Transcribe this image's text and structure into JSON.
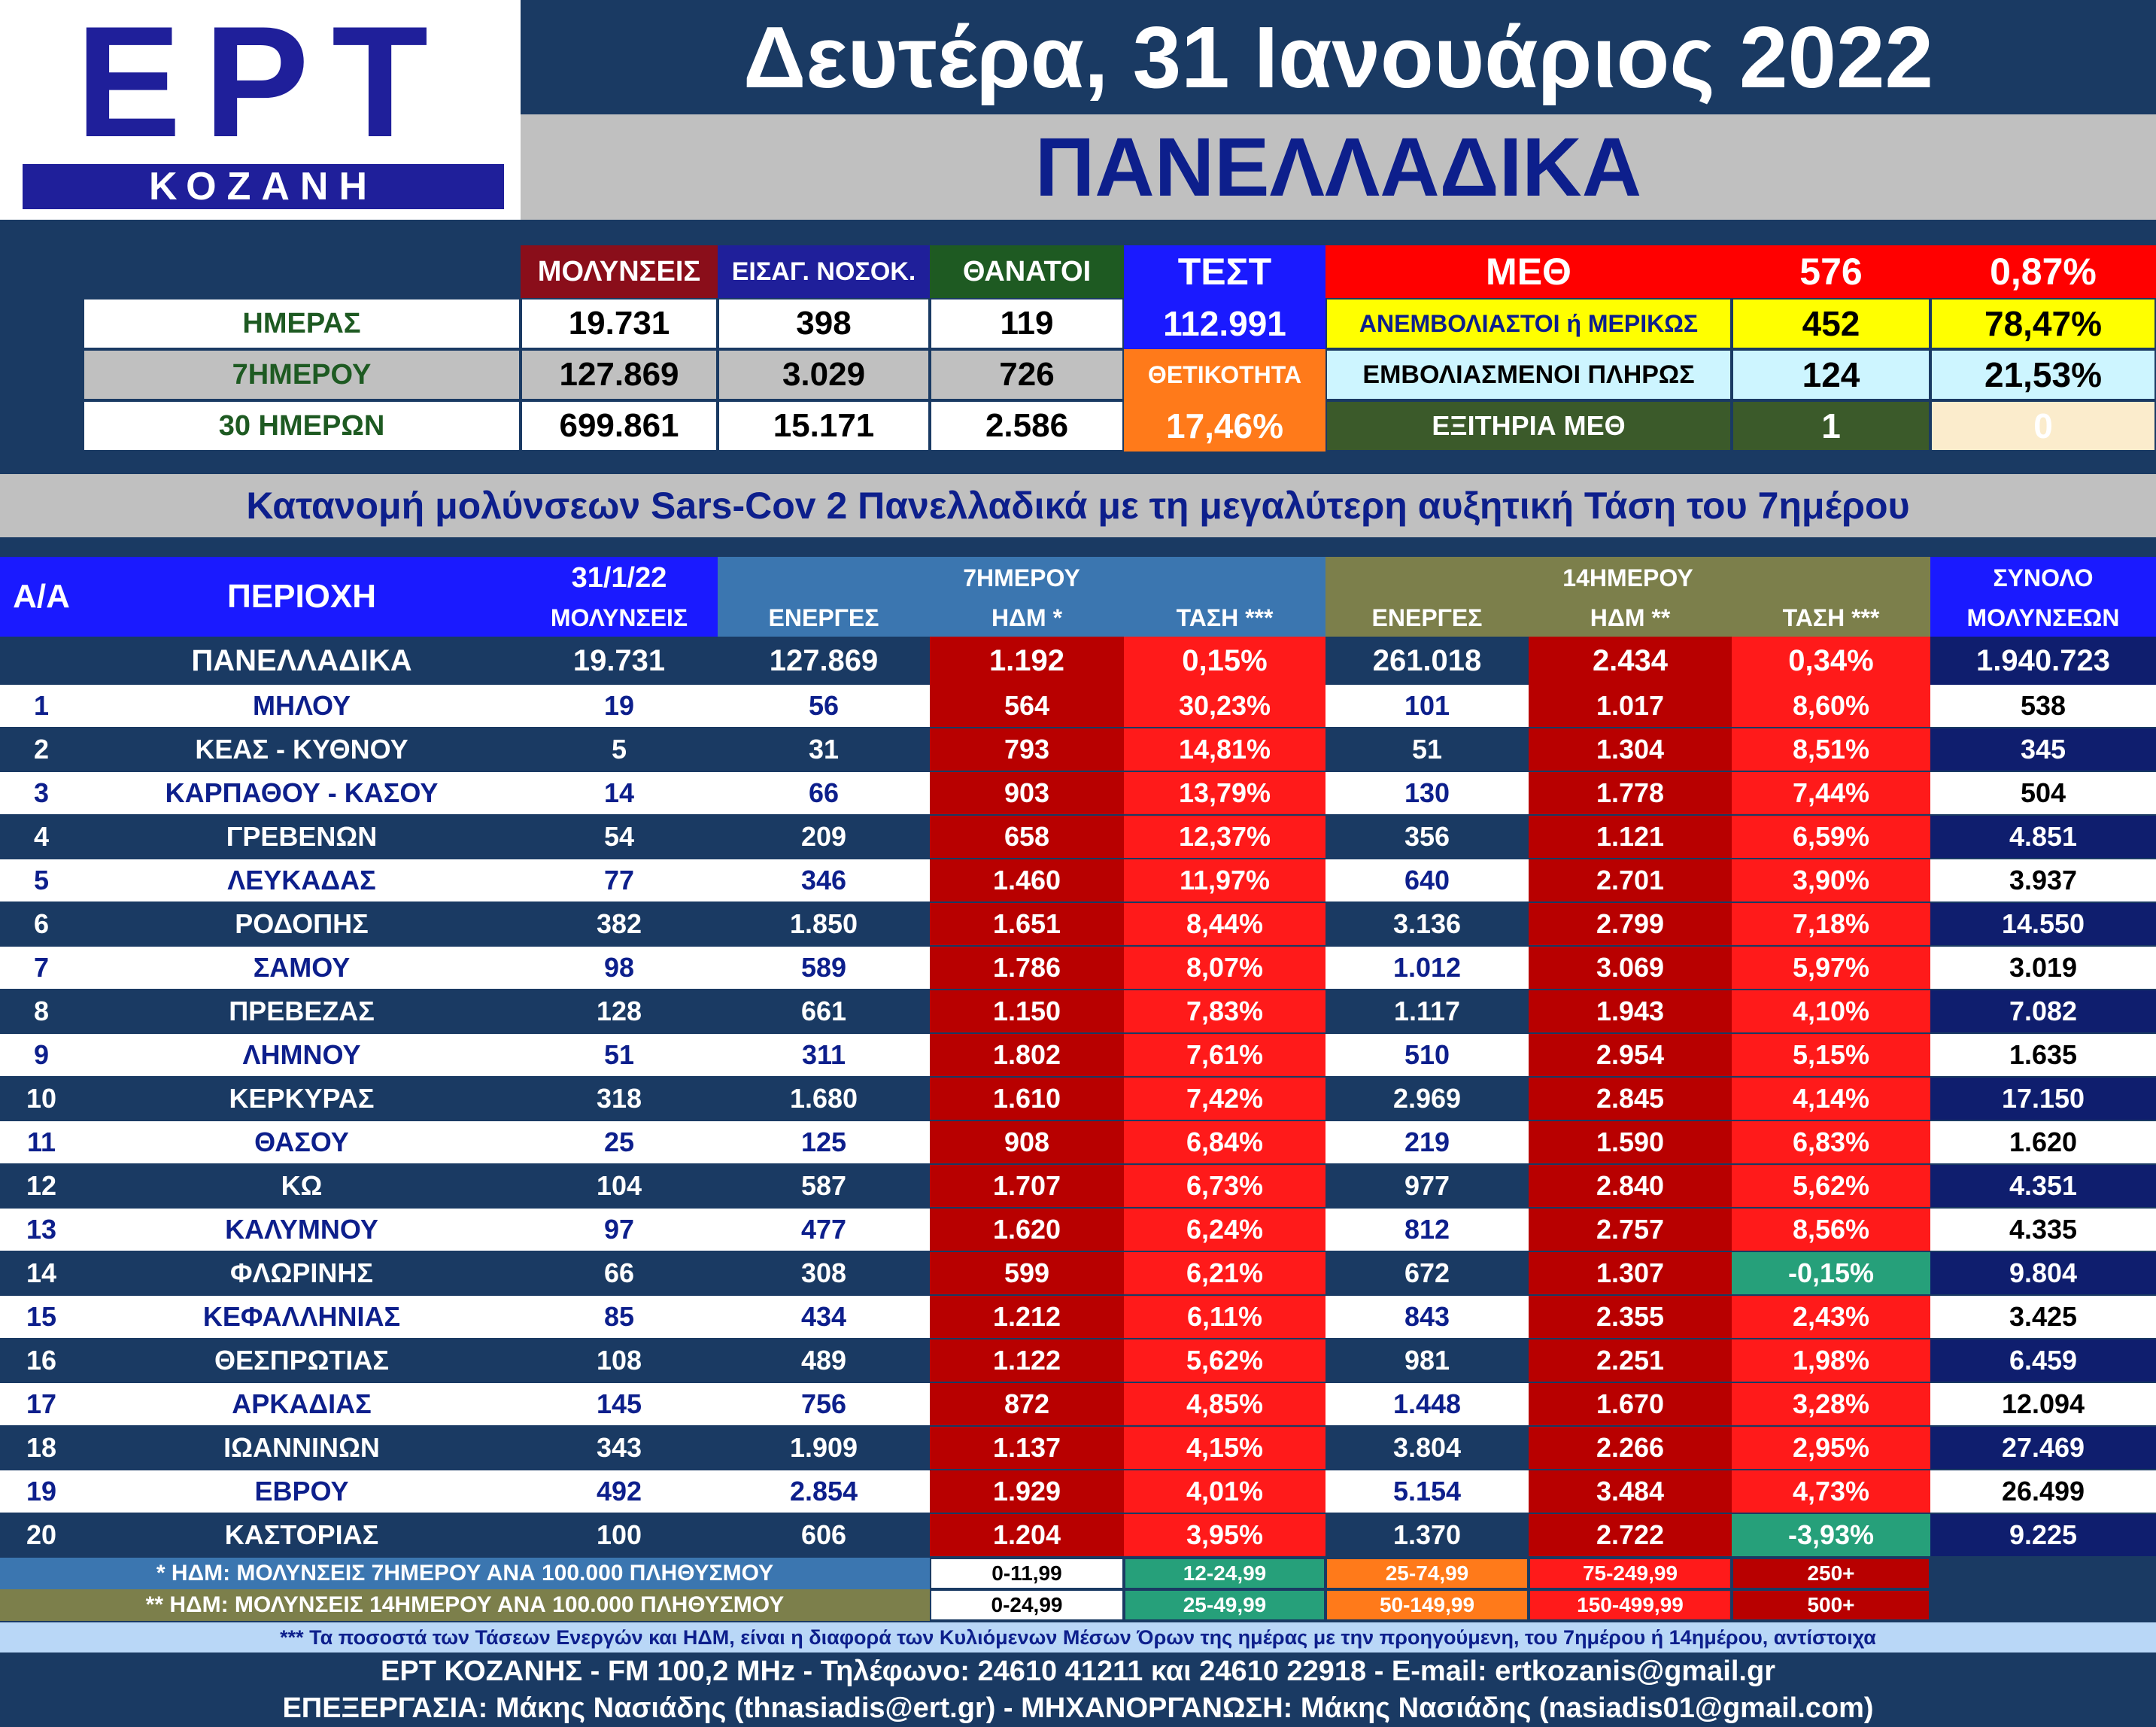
{
  "header": {
    "logo_text": "ΕΡΤ",
    "logo_sub": "ΚΟΖΑΝΗ",
    "date": "Δευτέρα, 31 Ιανουάριος 2022",
    "subtitle": "ΠΑΝΕΛΛΑΔΙΚΑ"
  },
  "summary": {
    "col_infections": "ΜΟΛΥΝΣΕΙΣ",
    "col_admissions": "ΕΙΣΑΓ. ΝΟΣΟΚ.",
    "col_deaths": "ΘΑΝΑΤΟΙ",
    "col_tests": "ΤΕΣΤ",
    "rows": [
      {
        "label": "ΗΜΕΡΑΣ",
        "infections": "19.731",
        "admissions": "398",
        "deaths": "119"
      },
      {
        "label": "7ΗΜΕΡΟΥ",
        "infections": "127.869",
        "admissions": "3.029",
        "deaths": "726"
      },
      {
        "label": "30 ΗΜΕΡΩΝ",
        "infections": "699.861",
        "admissions": "15.171",
        "deaths": "2.586"
      }
    ],
    "tests_value": "112.991",
    "positivity_label": "ΘΕΤΙΚΟΤΗΤΑ",
    "positivity_value": "17,46%",
    "icu": {
      "label": "ΜΕΘ",
      "total": "576",
      "total_pct": "0,87%",
      "unvacc_label": "ΑΝΕΜΒΟΛΙΑΣΤΟΙ ή ΜΕΡΙΚΩΣ",
      "unvacc": "452",
      "unvacc_pct": "78,47%",
      "vacc_label": "ΕΜΒΟΛΙΑΣΜΕΝΟΙ ΠΛΗΡΩΣ",
      "vacc": "124",
      "vacc_pct": "21,53%",
      "discharged_label": "ΕΞΙΤΗΡΙΑ ΜΕΘ",
      "discharged": "1",
      "discharged_pct": "0"
    }
  },
  "section_title": "Κατανομή μολύνσεων Sars-Cov 2 Πανελλαδικά με τη μεγαλύτερη αυξητική Τάση του 7ημέρου",
  "table": {
    "h_aa": "Α/Α",
    "h_region": "ΠΕΡΙΟΧΗ",
    "h_date": "31/1/22",
    "h_infections": "ΜΟΛΥΝΣΕΙΣ",
    "h_7day": "7ΗΜΕΡΟΥ",
    "h_14day": "14ΗΜΕΡΟΥ",
    "h_active": "ΕΝΕΡΓΕΣ",
    "h_hdm7": "ΗΔΜ *",
    "h_trend": "ΤΑΣΗ ***",
    "h_hdm14": "ΗΔΜ **",
    "h_total": "ΣΥΝΟΛΟ",
    "h_total2": "ΜΟΛΥΝΣΕΩΝ",
    "national": {
      "region": "ΠΑΝΕΛΛΑΔΙΚΑ",
      "today": "19.731",
      "active7": "127.869",
      "hdm7": "1.192",
      "trend7": "0,15%",
      "active14": "261.018",
      "hdm14": "2.434",
      "trend14": "0,34%",
      "total": "1.940.723"
    },
    "rows": [
      {
        "aa": "1",
        "region": "ΜΗΛΟΥ",
        "today": "19",
        "active7": "56",
        "hdm7": "564",
        "trend7": "30,23%",
        "active14": "101",
        "hdm14": "1.017",
        "trend14": "8,60%",
        "total": "538"
      },
      {
        "aa": "2",
        "region": "ΚΕΑΣ - ΚΥΘΝΟΥ",
        "today": "5",
        "active7": "31",
        "hdm7": "793",
        "trend7": "14,81%",
        "active14": "51",
        "hdm14": "1.304",
        "trend14": "8,51%",
        "total": "345"
      },
      {
        "aa": "3",
        "region": "ΚΑΡΠΑΘΟΥ - ΚΑΣΟΥ",
        "today": "14",
        "active7": "66",
        "hdm7": "903",
        "trend7": "13,79%",
        "active14": "130",
        "hdm14": "1.778",
        "trend14": "7,44%",
        "total": "504"
      },
      {
        "aa": "4",
        "region": "ΓΡΕΒΕΝΩΝ",
        "today": "54",
        "active7": "209",
        "hdm7": "658",
        "trend7": "12,37%",
        "active14": "356",
        "hdm14": "1.121",
        "trend14": "6,59%",
        "total": "4.851"
      },
      {
        "aa": "5",
        "region": "ΛΕΥΚΑΔΑΣ",
        "today": "77",
        "active7": "346",
        "hdm7": "1.460",
        "trend7": "11,97%",
        "active14": "640",
        "hdm14": "2.701",
        "trend14": "3,90%",
        "total": "3.937"
      },
      {
        "aa": "6",
        "region": "ΡΟΔΟΠΗΣ",
        "today": "382",
        "active7": "1.850",
        "hdm7": "1.651",
        "trend7": "8,44%",
        "active14": "3.136",
        "hdm14": "2.799",
        "trend14": "7,18%",
        "total": "14.550"
      },
      {
        "aa": "7",
        "region": "ΣΑΜΟΥ",
        "today": "98",
        "active7": "589",
        "hdm7": "1.786",
        "trend7": "8,07%",
        "active14": "1.012",
        "hdm14": "3.069",
        "trend14": "5,97%",
        "total": "3.019"
      },
      {
        "aa": "8",
        "region": "ΠΡΕΒΕΖΑΣ",
        "today": "128",
        "active7": "661",
        "hdm7": "1.150",
        "trend7": "7,83%",
        "active14": "1.117",
        "hdm14": "1.943",
        "trend14": "4,10%",
        "total": "7.082"
      },
      {
        "aa": "9",
        "region": "ΛΗΜΝΟΥ",
        "today": "51",
        "active7": "311",
        "hdm7": "1.802",
        "trend7": "7,61%",
        "active14": "510",
        "hdm14": "2.954",
        "trend14": "5,15%",
        "total": "1.635"
      },
      {
        "aa": "10",
        "region": "ΚΕΡΚΥΡΑΣ",
        "today": "318",
        "active7": "1.680",
        "hdm7": "1.610",
        "trend7": "7,42%",
        "active14": "2.969",
        "hdm14": "2.845",
        "trend14": "4,14%",
        "total": "17.150"
      },
      {
        "aa": "11",
        "region": "ΘΑΣΟΥ",
        "today": "25",
        "active7": "125",
        "hdm7": "908",
        "trend7": "6,84%",
        "active14": "219",
        "hdm14": "1.590",
        "trend14": "6,83%",
        "total": "1.620"
      },
      {
        "aa": "12",
        "region": "ΚΩ",
        "today": "104",
        "active7": "587",
        "hdm7": "1.707",
        "trend7": "6,73%",
        "active14": "977",
        "hdm14": "2.840",
        "trend14": "5,62%",
        "total": "4.351"
      },
      {
        "aa": "13",
        "region": "ΚΑΛΥΜΝΟΥ",
        "today": "97",
        "active7": "477",
        "hdm7": "1.620",
        "trend7": "6,24%",
        "active14": "812",
        "hdm14": "2.757",
        "trend14": "8,56%",
        "total": "4.335"
      },
      {
        "aa": "14",
        "region": "ΦΛΩΡΙΝΗΣ",
        "today": "66",
        "active7": "308",
        "hdm7": "599",
        "trend7": "6,21%",
        "active14": "672",
        "hdm14": "1.307",
        "trend14": "-0,15%",
        "total": "9.804"
      },
      {
        "aa": "15",
        "region": "ΚΕΦΑΛΛΗΝΙΑΣ",
        "today": "85",
        "active7": "434",
        "hdm7": "1.212",
        "trend7": "6,11%",
        "active14": "843",
        "hdm14": "2.355",
        "trend14": "2,43%",
        "total": "3.425"
      },
      {
        "aa": "16",
        "region": "ΘΕΣΠΡΩΤΙΑΣ",
        "today": "108",
        "active7": "489",
        "hdm7": "1.122",
        "trend7": "5,62%",
        "active14": "981",
        "hdm14": "2.251",
        "trend14": "1,98%",
        "total": "6.459"
      },
      {
        "aa": "17",
        "region": "ΑΡΚΑΔΙΑΣ",
        "today": "145",
        "active7": "756",
        "hdm7": "872",
        "trend7": "4,85%",
        "active14": "1.448",
        "hdm14": "1.670",
        "trend14": "3,28%",
        "total": "12.094"
      },
      {
        "aa": "18",
        "region": "ΙΩΑΝΝΙΝΩΝ",
        "today": "343",
        "active7": "1.909",
        "hdm7": "1.137",
        "trend7": "4,15%",
        "active14": "3.804",
        "hdm14": "2.266",
        "trend14": "2,95%",
        "total": "27.469"
      },
      {
        "aa": "19",
        "region": "ΕΒΡΟΥ",
        "today": "492",
        "active7": "2.854",
        "hdm7": "1.929",
        "trend7": "4,01%",
        "active14": "5.154",
        "hdm14": "3.484",
        "trend14": "4,73%",
        "total": "26.499"
      },
      {
        "aa": "20",
        "region": "ΚΑΣΤΟΡΙΑΣ",
        "today": "100",
        "active7": "606",
        "hdm7": "1.204",
        "trend7": "3,95%",
        "active14": "1.370",
        "hdm14": "2.722",
        "trend14": "-3,93%",
        "total": "9.225"
      }
    ]
  },
  "legend": {
    "note7": "* ΗΔΜ: ΜΟΛΥΝΣΕΙΣ 7ΗΜΕΡΟΥ ΑΝΑ 100.000 ΠΛΗΘΥΣΜΟΥ",
    "note14": "** ΗΔΜ: ΜΟΛΥΝΣΕΙΣ 14ΗΜΕΡΟΥ ΑΝΑ 100.000 ΠΛΗΘΥΣΜΟΥ",
    "ranges7": [
      "0-11,99",
      "12-24,99",
      "25-74,99",
      "75-249,99",
      "250+"
    ],
    "ranges14": [
      "0-24,99",
      "25-49,99",
      "50-149,99",
      "150-499,99",
      "500+"
    ],
    "colors": [
      "#ffffff",
      "#26a07a",
      "#ff7a1a",
      "#ff1a1a",
      "#b80000"
    ]
  },
  "footer": {
    "note": "*** Τα ποσοστά των Τάσεων Ενεργών και ΗΔΜ, είναι η διαφορά των Κυλιόμενων Μέσων Όρων της ημέρας με την προηγούμενη, του 7ημέρου ή 14ημέρου, αντίστοιχα",
    "contact": "ΕΡΤ ΚΟΖΑΝΗΣ - FM 100,2 MHz - Τηλέφωνο:  24610 41211 και 24610 22918 - E-mail: ertkozanis@gmail.gr",
    "credits": "ΕΠΕΞΕΡΓΑΣΙΑ: Μάκης Νασιάδης (thnasiadis@ert.gr) - ΜΗΧΑΝΟΡΓΑΝΩΣΗ: Μάκης Νασιάδης (nasiadis01@gmail.com)"
  }
}
